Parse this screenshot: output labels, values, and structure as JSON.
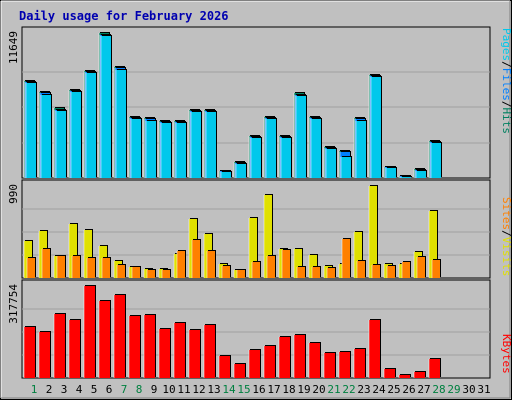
{
  "colors": {
    "title": "#0000b0",
    "pages": "#00c8ec",
    "files": "#0080ff",
    "hits": "#008060",
    "sites": "#ff8000",
    "visits": "#e0e000",
    "kbytes": "#ff0000",
    "panel": "#c0c0c0",
    "weekday": "#000000",
    "weekend": "#008040"
  },
  "chart_data": {
    "type": "bar",
    "title": "Daily usage for February 2026",
    "days": [
      1,
      2,
      3,
      4,
      5,
      6,
      7,
      8,
      9,
      10,
      11,
      12,
      13,
      14,
      15,
      16,
      17,
      18,
      19,
      20,
      21,
      22,
      23,
      24,
      25,
      26,
      27,
      28,
      29,
      30,
      31
    ],
    "weekend_days": [
      1,
      7,
      8,
      14,
      15,
      21,
      22,
      28,
      29
    ],
    "panels": [
      {
        "id": "hits",
        "max_label": "11649",
        "max": 11649,
        "legend": [
          "Pages",
          "/",
          "Files",
          "/",
          "Hits"
        ],
        "series": [
          {
            "name": "Hits",
            "values": [
              7800,
              6900,
              5600,
              7100,
              8600,
              11649,
              8900,
              4900,
              4800,
              4600,
              4600,
              5500,
              5500,
              600,
              1300,
              3400,
              4900,
              3400,
              6800,
              4900,
              2500,
              2200,
              4800,
              8300,
              900,
              200,
              700,
              3000,
              0,
              0,
              0
            ]
          },
          {
            "name": "Files",
            "values": [
              7700,
              6800,
              5500,
              7000,
              8500,
              11500,
              8800,
              4800,
              4700,
              4500,
              4500,
              5400,
              5400,
              550,
              1200,
              3300,
              4800,
              3300,
              6700,
              4800,
              2400,
              2100,
              4700,
              8200,
              850,
              150,
              650,
              2900,
              0,
              0,
              0
            ]
          },
          {
            "name": "Pages",
            "values": [
              7600,
              6700,
              5400,
              6900,
              8400,
              11400,
              8700,
              4700,
              4600,
              4400,
              4400,
              5300,
              5300,
              500,
              1100,
              3200,
              4700,
              3200,
              6600,
              4700,
              2300,
              1700,
              4600,
              8100,
              800,
              100,
              600,
              2800,
              0,
              0,
              0
            ]
          }
        ]
      },
      {
        "id": "visits",
        "max_label": "990",
        "max": 990,
        "legend": [
          "Sites",
          "/",
          "Visits"
        ],
        "series": [
          {
            "name": "Visits",
            "values": [
              400,
              510,
              240,
              580,
              520,
              340,
              180,
              120,
              100,
              100,
              260,
              640,
              470,
              150,
              90,
              650,
              890,
              310,
              310,
              250,
              130,
              150,
              500,
              990,
              150,
              150,
              280,
              720,
              0,
              0,
              0
            ]
          },
          {
            "name": "Sites",
            "values": [
              210,
              310,
              240,
              240,
              220,
              220,
              140,
              120,
              90,
              90,
              290,
              410,
              290,
              130,
              90,
              170,
              240,
              300,
              120,
              120,
              110,
              420,
              180,
              140,
              130,
              170,
              230,
              190,
              0,
              0,
              0
            ]
          }
        ]
      },
      {
        "id": "kbytes",
        "max_label": "317754",
        "max": 317754,
        "legend": [
          "KBytes"
        ],
        "series": [
          {
            "name": "KBytes",
            "values": [
              175000,
              160000,
              220000,
              200000,
              317754,
              265000,
              288000,
              215000,
              217000,
              170000,
              190000,
              165000,
              183000,
              75000,
              50000,
              95000,
              110000,
              140000,
              150000,
              120000,
              85000,
              90000,
              100000,
              201000,
              32000,
              10000,
              20000,
              66000,
              0,
              0,
              0
            ]
          }
        ]
      }
    ]
  }
}
